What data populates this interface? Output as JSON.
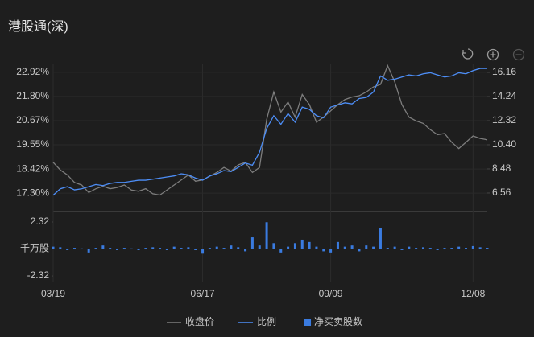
{
  "chart_data": [
    {
      "type": "line",
      "title": "港股通(深)",
      "xlim": [
        0,
        61
      ],
      "xticks": [
        {
          "value": 0,
          "label": "03/19"
        },
        {
          "value": 21,
          "label": "06/17"
        },
        {
          "value": 39,
          "label": "09/09"
        },
        {
          "value": 59,
          "label": "12/08"
        }
      ],
      "ylim": [
        16.48,
        23.29
      ],
      "yticks": [
        {
          "value": 17.3,
          "label": "17.30%"
        },
        {
          "value": 18.42,
          "label": "18.42%"
        },
        {
          "value": 19.55,
          "label": "19.55%"
        },
        {
          "value": 20.67,
          "label": "20.67%"
        },
        {
          "value": 21.8,
          "label": "21.80%"
        },
        {
          "value": 22.92,
          "label": "22.92%"
        }
      ],
      "y2lim": [
        5.15,
        16.8
      ],
      "y2ticks": [
        6.56,
        8.48,
        {
          "value": 10.4,
          "label": "10.40"
        },
        12.32,
        14.24,
        16.16
      ],
      "series": [
        {
          "name": "收盘价",
          "color": "#7d7d7d",
          "axis": "y2",
          "values": [
            9.0,
            8.4,
            8.0,
            7.4,
            7.2,
            6.6,
            6.9,
            7.1,
            6.9,
            7.0,
            7.2,
            6.8,
            6.7,
            6.9,
            6.5,
            6.4,
            6.8,
            7.2,
            7.6,
            8.0,
            7.5,
            7.6,
            7.9,
            8.2,
            8.6,
            8.3,
            8.8,
            9.0,
            8.2,
            8.6,
            12.4,
            14.6,
            13.0,
            13.8,
            12.6,
            14.4,
            13.6,
            12.2,
            12.6,
            13.1,
            13.6,
            14.0,
            14.2,
            14.3,
            14.6,
            15.0,
            15.2,
            16.7,
            15.4,
            13.6,
            12.6,
            12.3,
            12.1,
            11.6,
            11.2,
            11.3,
            10.6,
            10.1,
            10.6,
            11.1,
            10.9,
            10.8
          ]
        },
        {
          "name": "比例",
          "color": "#4d8ef7",
          "values": [
            17.2,
            17.5,
            17.6,
            17.45,
            17.5,
            17.6,
            17.7,
            17.65,
            17.75,
            17.8,
            17.8,
            17.85,
            17.9,
            17.9,
            17.95,
            18.0,
            18.05,
            18.1,
            18.2,
            18.15,
            18.0,
            17.9,
            18.1,
            18.2,
            18.35,
            18.3,
            18.5,
            18.7,
            18.6,
            19.2,
            20.3,
            20.9,
            20.5,
            21.0,
            20.6,
            21.3,
            21.2,
            20.9,
            20.8,
            21.3,
            21.4,
            21.5,
            21.45,
            21.7,
            21.75,
            22.0,
            22.75,
            22.55,
            22.6,
            22.7,
            22.8,
            22.75,
            22.85,
            22.9,
            22.8,
            22.7,
            22.75,
            22.9,
            22.85,
            23.0,
            23.1,
            23.1
          ]
        }
      ]
    },
    {
      "type": "bar",
      "xlim": [
        0,
        61
      ],
      "ylim": [
        -2.8,
        3.08
      ],
      "yticks": [
        2.32,
        {
          "value": 0,
          "label": "千万股"
        },
        -2.32
      ],
      "series": [
        {
          "name": "净买卖股数",
          "color": "#3a7be0",
          "values": [
            0.2,
            0.15,
            -0.1,
            0.1,
            0.05,
            -0.3,
            0.1,
            0.3,
            0.1,
            -0.1,
            0.1,
            0.05,
            -0.1,
            0.1,
            0.15,
            0.1,
            -0.1,
            0.2,
            0.1,
            0.15,
            -0.1,
            -0.4,
            0.1,
            0.2,
            0.1,
            0.3,
            0.15,
            -0.2,
            1.0,
            0.3,
            2.3,
            0.5,
            -0.3,
            0.2,
            0.5,
            0.8,
            0.6,
            0.2,
            -0.2,
            -0.3,
            0.6,
            0.2,
            0.3,
            -0.2,
            0.3,
            0.2,
            1.8,
            0.1,
            0.2,
            -0.1,
            0.2,
            0.1,
            0.15,
            0.1,
            -0.1,
            0.1,
            0.1,
            0.2,
            0.1,
            0.25,
            0.15,
            0.1
          ]
        }
      ]
    }
  ]
}
